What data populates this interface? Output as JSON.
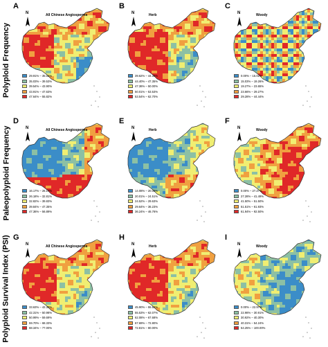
{
  "row_labels": [
    "Polyploid Frequency",
    "Paleopolyploid Frequency",
    "Polyploid Survival Index (PSI)"
  ],
  "palette": [
    "#3b8dc8",
    "#8cc0a4",
    "#f0ee72",
    "#f0a040",
    "#e02828"
  ],
  "panels": [
    {
      "letter": "A",
      "title": "All Chinese Angiosperms",
      "legend": [
        "29.91% – 35.02%",
        "35.03% – 39.53%",
        "39.54% – 43.90%",
        "43.91% – 47.63%",
        "47.64% – 55.82%"
      ],
      "pattern": "freqAll"
    },
    {
      "letter": "B",
      "title": "Herb",
      "legend": [
        "39.62% – 44.39%",
        "44.40% – 47.35%",
        "47.36% – 50.00%",
        "50.01% – 53.53%",
        "53.54% – 62.70%"
      ],
      "pattern": "freqHerb"
    },
    {
      "letter": "C",
      "title": "Woody",
      "legend": [
        "0.00% – 15.02%",
        "15.03% – 19.26%",
        "19.27% – 23.65%",
        "23.66% – 29.27%",
        "29.28% – 44.44%"
      ],
      "pattern": "freqWoody"
    },
    {
      "letter": "D",
      "title": "All Chinese Angiosperms",
      "legend": [
        "16.17% – 26.17%",
        "26.18% – 32.81%",
        "32.82% – 39.83%",
        "39.84% – 47.35%",
        "47.36% – 56.89%"
      ],
      "pattern": "paleoAll"
    },
    {
      "letter": "E",
      "title": "Herb",
      "legend": [
        "14.08% – 20.00%",
        "20.01% – 24.51%",
        "24.52% – 29.63%",
        "29.64% – 36.23%",
        "36.24% – 46.76%"
      ],
      "pattern": "paleoHerb"
    },
    {
      "letter": "F",
      "title": "Woody",
      "legend": [
        "0.00% – 27.27%",
        "27.28% – 41.49%",
        "41.50% – 51.50%",
        "51.51% – 61.93%",
        "61.94% – 92.50%"
      ],
      "pattern": "paleoWoody"
    },
    {
      "letter": "G",
      "title": "All Chinese Angiosperms",
      "legend": [
        "33.63% – 42.30%",
        "42.31% – 50.98%",
        "50.99% – 59.69%",
        "59.70% – 68.33%",
        "68.34% – 77.00%"
      ],
      "pattern": "psiAll"
    },
    {
      "letter": "H",
      "title": "Herb",
      "legend": [
        "45.90% – 55.52%",
        "55.53% – 62.07%",
        "62.08% – 67.68%",
        "67.69% – 72.80%",
        "72.81% – 80.00%"
      ],
      "pattern": "psiHerb"
    },
    {
      "letter": "I",
      "title": "Woody",
      "legend": [
        "0.00% – 22.97%",
        "22.98% – 30.91%",
        "30.92% – 40.30%",
        "40.31% – 54.24%",
        "54.25% – 100.00%"
      ],
      "pattern": "psiWoody"
    }
  ],
  "north_label": "N"
}
